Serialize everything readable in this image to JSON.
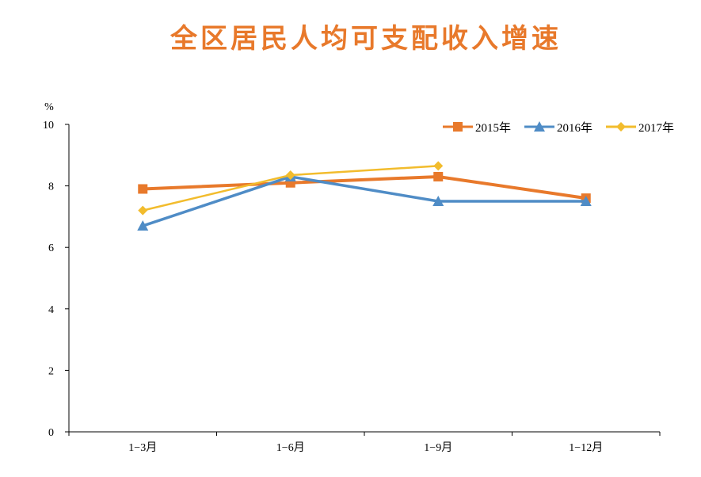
{
  "chart_data": {
    "type": "line",
    "title": "全区居民人均可支配收入增速",
    "ylabel": "%",
    "xlabel": "",
    "categories": [
      "1−3月",
      "1−6月",
      "1−9月",
      "1−12月"
    ],
    "yticks": [
      "0",
      "2",
      "4",
      "6",
      "8",
      "10"
    ],
    "ylim": [
      0,
      10
    ],
    "grid": false,
    "legend_position": "top-right",
    "series": [
      {
        "name": "2015年",
        "values": [
          7.9,
          8.1,
          8.3,
          7.6
        ],
        "color": "#e8792b",
        "marker": "square"
      },
      {
        "name": "2016年",
        "values": [
          6.7,
          8.3,
          7.5,
          7.5
        ],
        "color": "#4f8cc6",
        "marker": "triangle"
      },
      {
        "name": "2017年",
        "values": [
          7.2,
          8.35,
          8.65,
          null
        ],
        "color": "#f2bc2d",
        "marker": "diamond"
      }
    ]
  }
}
